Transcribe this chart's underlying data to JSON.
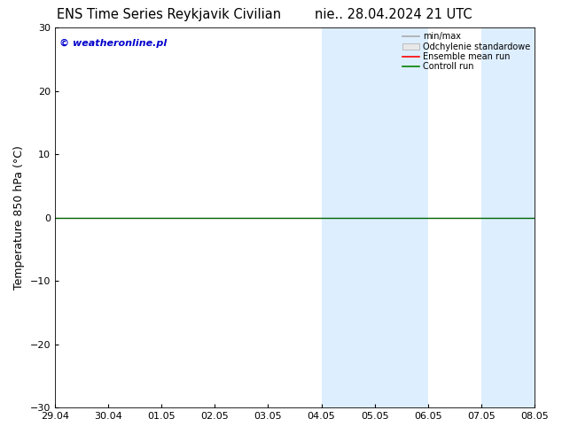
{
  "title_left": "ENS Time Series Reykjavik Civilian",
  "title_right": "nie.. 28.04.2024 21 UTC",
  "ylabel": "Temperature 850 hPa (°C)",
  "xlabel_ticks": [
    "29.04",
    "30.04",
    "01.05",
    "02.05",
    "03.05",
    "04.05",
    "05.05",
    "06.05",
    "07.05",
    "08.05"
  ],
  "ylim": [
    -30,
    30
  ],
  "yticks": [
    -30,
    -20,
    -10,
    0,
    10,
    20,
    30
  ],
  "copyright_text": "© weatheronline.pl",
  "legend_labels": [
    "min/max",
    "Odchylenie standardowe",
    "Ensemble mean run",
    "Controll run"
  ],
  "legend_colors": [
    "#aaaaaa",
    "#cccccc",
    "#ff0000",
    "#008000"
  ],
  "shaded_regions": [
    {
      "xstart": 5,
      "xend": 6,
      "color": "#ddeeff"
    },
    {
      "xstart": 6,
      "xend": 7,
      "color": "#ddeeff"
    },
    {
      "xstart": 8,
      "xend": 9,
      "color": "#ddeeff"
    }
  ],
  "hline_y": 0,
  "hline_color": "#006400",
  "background_color": "#ffffff",
  "plot_bg_color": "#ffffff",
  "title_fontsize": 10.5,
  "tick_fontsize": 8,
  "ylabel_fontsize": 9,
  "copyright_color": "#0000cc",
  "copyright_fontsize": 8
}
